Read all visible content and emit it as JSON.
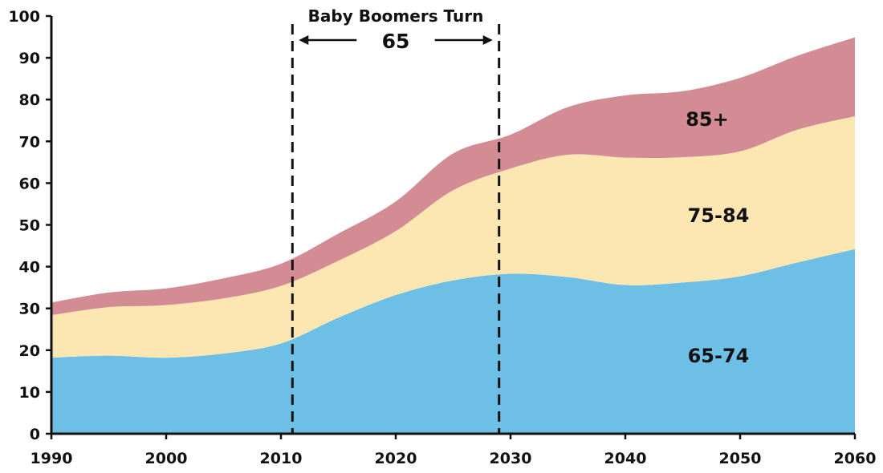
{
  "chart_data": {
    "type": "area",
    "stacked": true,
    "x": [
      1990,
      1995,
      2000,
      2005,
      2010,
      2015,
      2020,
      2025,
      2030,
      2035,
      2040,
      2045,
      2050,
      2055,
      2060
    ],
    "series": [
      {
        "name": "65-74",
        "color": "#6ebfe5",
        "values": [
          18.2,
          18.7,
          18.2,
          19.2,
          21.6,
          27.8,
          33.2,
          36.7,
          38.3,
          37.5,
          35.6,
          36.2,
          37.7,
          41.0,
          44.2
        ]
      },
      {
        "name": "75-84",
        "color": "#fce7b3",
        "values": [
          10.2,
          11.6,
          12.6,
          13.2,
          13.8,
          13.6,
          15.3,
          21.6,
          25.2,
          29.3,
          30.5,
          30.0,
          29.9,
          31.8,
          31.8
        ]
      },
      {
        "name": "85+",
        "color": "#d38b94",
        "values": [
          3.0,
          3.5,
          4.0,
          4.8,
          5.3,
          6.5,
          7.1,
          8.8,
          8.1,
          11.4,
          14.9,
          15.8,
          17.6,
          17.7,
          18.9
        ]
      }
    ],
    "xlim": [
      1990,
      2060
    ],
    "ylim": [
      0,
      100
    ],
    "x_ticks": [
      1990,
      2000,
      2010,
      2020,
      2030,
      2040,
      2050,
      2060
    ],
    "y_ticks": [
      0,
      10,
      20,
      30,
      40,
      50,
      60,
      70,
      80,
      90,
      100
    ],
    "grid": false,
    "annotation": {
      "text_line1": "Baby Boomers Turn",
      "text_line2": "65",
      "x_start": 2011,
      "x_end": 2029
    }
  }
}
